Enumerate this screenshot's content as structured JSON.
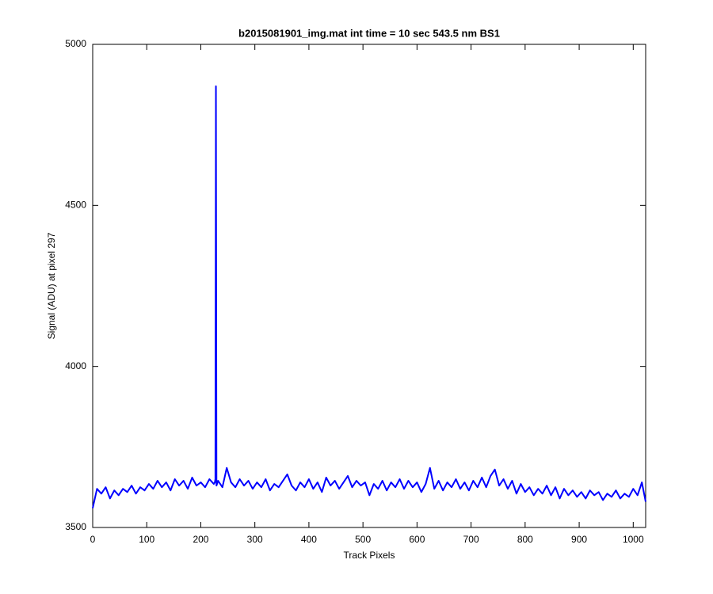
{
  "chart_data": {
    "type": "line",
    "title": "b2015081901_img.mat int time = 10 sec  543.5 nm BS1",
    "xlabel": "Track Pixels",
    "ylabel": "Signal (ADU) at pixel 297",
    "xlim": [
      0,
      1023
    ],
    "ylim": [
      3500,
      5000
    ],
    "xticks": [
      0,
      100,
      200,
      300,
      400,
      500,
      600,
      700,
      800,
      900,
      1000
    ],
    "yticks": [
      3500,
      4000,
      4500,
      5000
    ],
    "grid": false,
    "series": [
      {
        "color": "#0000ff",
        "x": [
          0,
          8,
          16,
          24,
          32,
          40,
          48,
          56,
          64,
          72,
          80,
          88,
          96,
          104,
          112,
          120,
          128,
          136,
          144,
          152,
          160,
          168,
          176,
          184,
          192,
          200,
          208,
          216,
          224,
          226,
          227,
          228,
          229,
          232,
          240,
          248,
          256,
          264,
          272,
          280,
          288,
          296,
          304,
          312,
          320,
          328,
          336,
          344,
          352,
          360,
          368,
          376,
          384,
          392,
          400,
          408,
          416,
          424,
          432,
          440,
          448,
          456,
          464,
          472,
          480,
          488,
          496,
          504,
          512,
          520,
          528,
          536,
          544,
          552,
          560,
          568,
          576,
          584,
          592,
          600,
          608,
          616,
          624,
          632,
          640,
          648,
          656,
          664,
          672,
          680,
          688,
          696,
          704,
          712,
          720,
          728,
          736,
          744,
          752,
          760,
          768,
          776,
          784,
          792,
          800,
          808,
          816,
          824,
          832,
          840,
          848,
          856,
          864,
          872,
          880,
          888,
          896,
          904,
          912,
          920,
          928,
          936,
          944,
          952,
          960,
          968,
          976,
          984,
          992,
          1000,
          1008,
          1016,
          1023
        ],
        "values": [
          3560,
          3620,
          3605,
          3625,
          3590,
          3615,
          3600,
          3620,
          3610,
          3630,
          3605,
          3625,
          3615,
          3635,
          3620,
          3645,
          3625,
          3640,
          3615,
          3650,
          3630,
          3645,
          3620,
          3655,
          3630,
          3640,
          3625,
          3650,
          3635,
          3640,
          3650,
          4870,
          3630,
          3645,
          3625,
          3685,
          3640,
          3625,
          3650,
          3630,
          3645,
          3620,
          3640,
          3625,
          3650,
          3615,
          3635,
          3625,
          3645,
          3665,
          3630,
          3615,
          3640,
          3625,
          3650,
          3620,
          3640,
          3610,
          3655,
          3630,
          3645,
          3620,
          3640,
          3660,
          3625,
          3645,
          3630,
          3640,
          3600,
          3635,
          3620,
          3645,
          3615,
          3640,
          3625,
          3650,
          3620,
          3645,
          3625,
          3640,
          3610,
          3635,
          3685,
          3620,
          3645,
          3615,
          3640,
          3625,
          3650,
          3620,
          3640,
          3615,
          3645,
          3625,
          3655,
          3625,
          3660,
          3680,
          3630,
          3650,
          3620,
          3645,
          3605,
          3635,
          3610,
          3625,
          3600,
          3620,
          3605,
          3630,
          3600,
          3625,
          3590,
          3620,
          3600,
          3615,
          3595,
          3610,
          3590,
          3615,
          3600,
          3610,
          3585,
          3605,
          3595,
          3615,
          3590,
          3605,
          3595,
          3620,
          3600,
          3640,
          3580
        ]
      }
    ]
  }
}
